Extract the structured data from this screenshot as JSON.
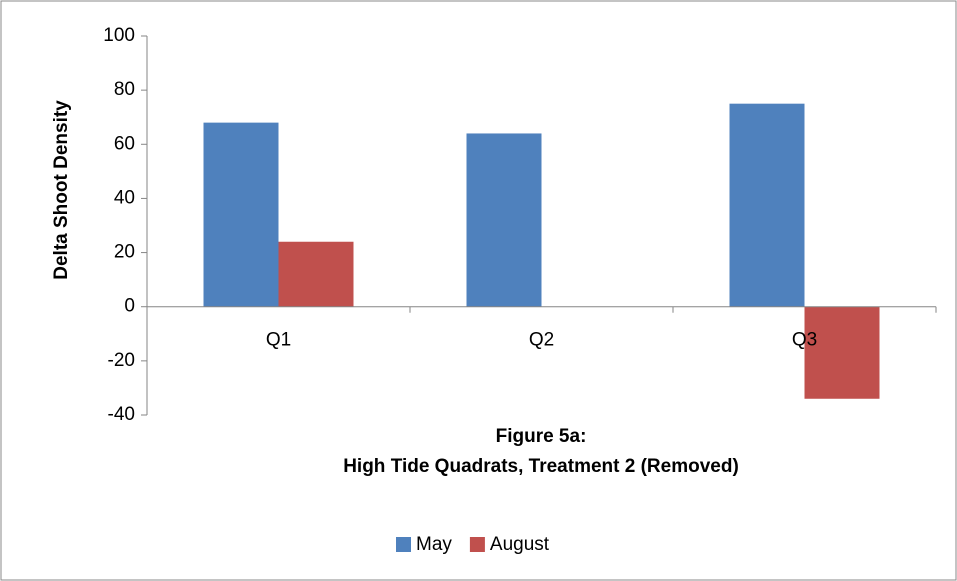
{
  "chart_data": {
    "type": "bar",
    "title": [
      "Figure 5a:",
      "High Tide Quadrats, Treatment 2 (Removed)"
    ],
    "y_label": "Delta Shoot Density",
    "categories": [
      "Q1",
      "Q2",
      "Q3"
    ],
    "series": [
      {
        "name": "May",
        "color": "#4f81bd",
        "values": [
          68,
          64,
          75
        ]
      },
      {
        "name": "August",
        "color": "#c0504d",
        "values": [
          24,
          0,
          -34
        ]
      }
    ],
    "ylim": [
      -40,
      100
    ],
    "yticks": [
      -40,
      -20,
      0,
      20,
      40,
      60,
      80,
      100
    ],
    "grid": false,
    "legend": "bottom"
  }
}
